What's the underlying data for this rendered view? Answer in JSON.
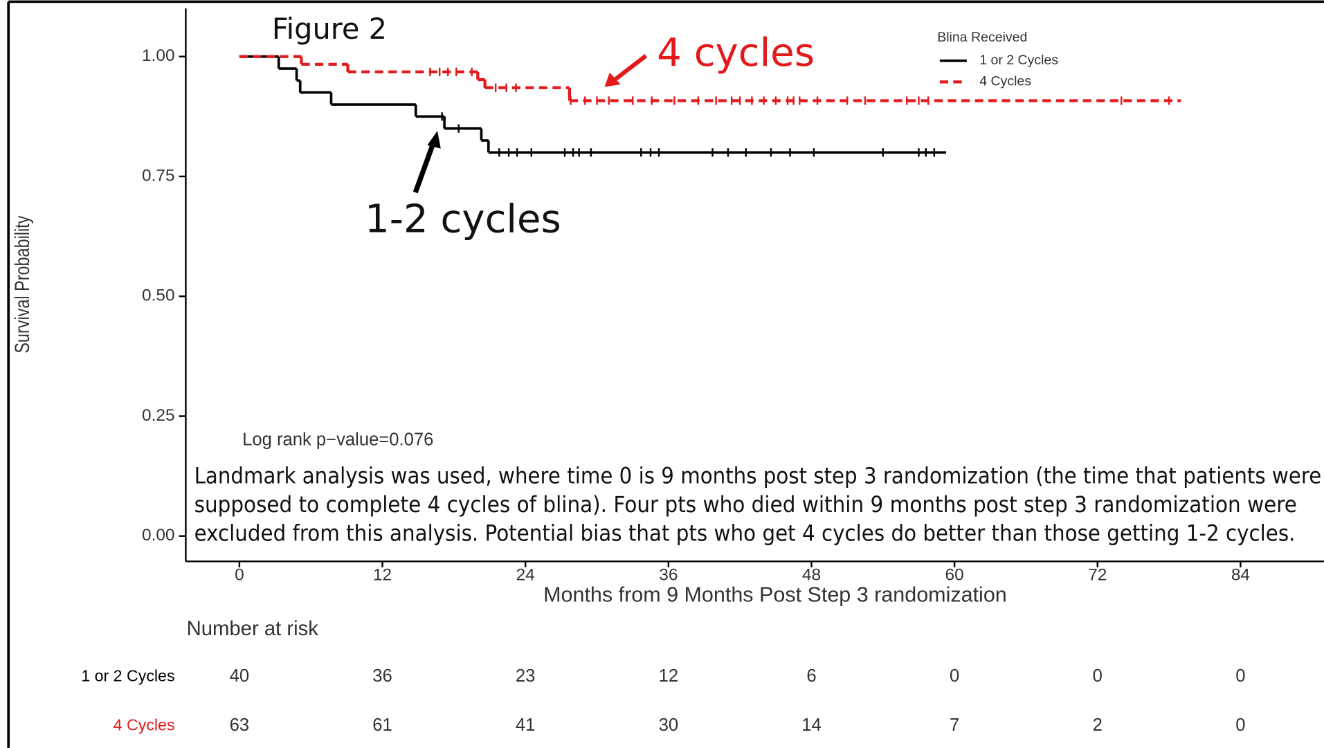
{
  "chart_data": {
    "type": "step",
    "title": "Figure 2",
    "x_label": "Months from 9 Months Post Step 3 randomization",
    "y_label": "Survival Probability",
    "xlim": [
      -4.5,
      91
    ],
    "ylim": [
      0,
      1
    ],
    "xticks": [
      0,
      12,
      24,
      36,
      48,
      60,
      72,
      84
    ],
    "yticks": [
      {
        "value": 0,
        "label": "0.00"
      },
      {
        "value": 0.25,
        "label": "0.25"
      },
      {
        "value": 0.5,
        "label": "0.50"
      },
      {
        "value": 0.75,
        "label": "0.75"
      },
      {
        "value": 1,
        "label": "1.00"
      }
    ],
    "legend_title": "Blina Received",
    "legend_position": "top-right",
    "series": [
      {
        "name": "1 or 2 Cycles",
        "color": "#000000",
        "dashed": false,
        "x": [
          0,
          3.3,
          4.8,
          5.1,
          7.7,
          14.8,
          17.2,
          20.3,
          20.9,
          59.3
        ],
        "values": [
          1,
          0.975,
          0.95,
          0.925,
          0.9,
          0.875,
          0.85,
          0.825,
          0.8,
          0.8
        ],
        "censor_x": [
          17,
          18.4,
          21.8,
          22.6,
          23.3,
          24.5,
          27.3,
          28,
          28.5,
          29.5,
          33.7,
          34.5,
          35.2,
          39.7,
          41,
          42.5,
          44.6,
          46.2,
          48.2,
          54,
          57,
          57.6,
          58.3
        ],
        "censor_values": [
          0.875,
          0.85,
          0.8,
          0.8,
          0.8,
          0.8,
          0.8,
          0.8,
          0.8,
          0.8,
          0.8,
          0.8,
          0.8,
          0.8,
          0.8,
          0.8,
          0.8,
          0.8,
          0.8,
          0.8,
          0.8,
          0.8,
          0.8
        ]
      },
      {
        "name": "4 Cycles",
        "color": "#e31a1c",
        "dashed": true,
        "x": [
          0,
          5.2,
          9.1,
          20,
          20.6,
          27.7,
          79
        ],
        "values": [
          1,
          0.984,
          0.968,
          0.952,
          0.935,
          0.908,
          0.908
        ],
        "censor_x": [
          16,
          16.8,
          17.5,
          18.2,
          19.5,
          21.5,
          22.4,
          23.2,
          27.8,
          29,
          30,
          31,
          33,
          34.6,
          36.5,
          38.5,
          40,
          41.3,
          42,
          43,
          44,
          45,
          46,
          46.5,
          47,
          48.5,
          51,
          52.5,
          56,
          57,
          57.8,
          74,
          78
        ],
        "censor_values": [
          0.968,
          0.968,
          0.968,
          0.968,
          0.968,
          0.935,
          0.935,
          0.935,
          0.908,
          0.908,
          0.908,
          0.908,
          0.908,
          0.908,
          0.908,
          0.908,
          0.908,
          0.908,
          0.908,
          0.908,
          0.908,
          0.908,
          0.908,
          0.908,
          0.908,
          0.908,
          0.908,
          0.908,
          0.908,
          0.908,
          0.908,
          0.908,
          0.908
        ]
      }
    ],
    "annotations": {
      "red_label": "4 cycles",
      "black_label": "1-2 cycles",
      "p_value": "Log rank p−value=0.076",
      "note": [
        "Landmark analysis was used, where time 0 is 9 months post step 3 randomization (the time that patients were",
        "supposed to complete 4 cycles of blina). Four pts who died within 9 months post step 3 randomization were",
        "excluded from this analysis. Potential bias that pts who get 4 cycles do better than those getting 1-2 cycles."
      ]
    },
    "risk_table": {
      "title": "Number at risk",
      "rows": [
        {
          "name": "1 or 2 Cycles",
          "color": "#000000",
          "values": [
            40,
            36,
            23,
            12,
            6,
            0,
            0,
            0
          ]
        },
        {
          "name": "4 Cycles",
          "color": "#e31a1c",
          "values": [
            63,
            61,
            41,
            30,
            14,
            7,
            2,
            0
          ]
        }
      ]
    }
  }
}
